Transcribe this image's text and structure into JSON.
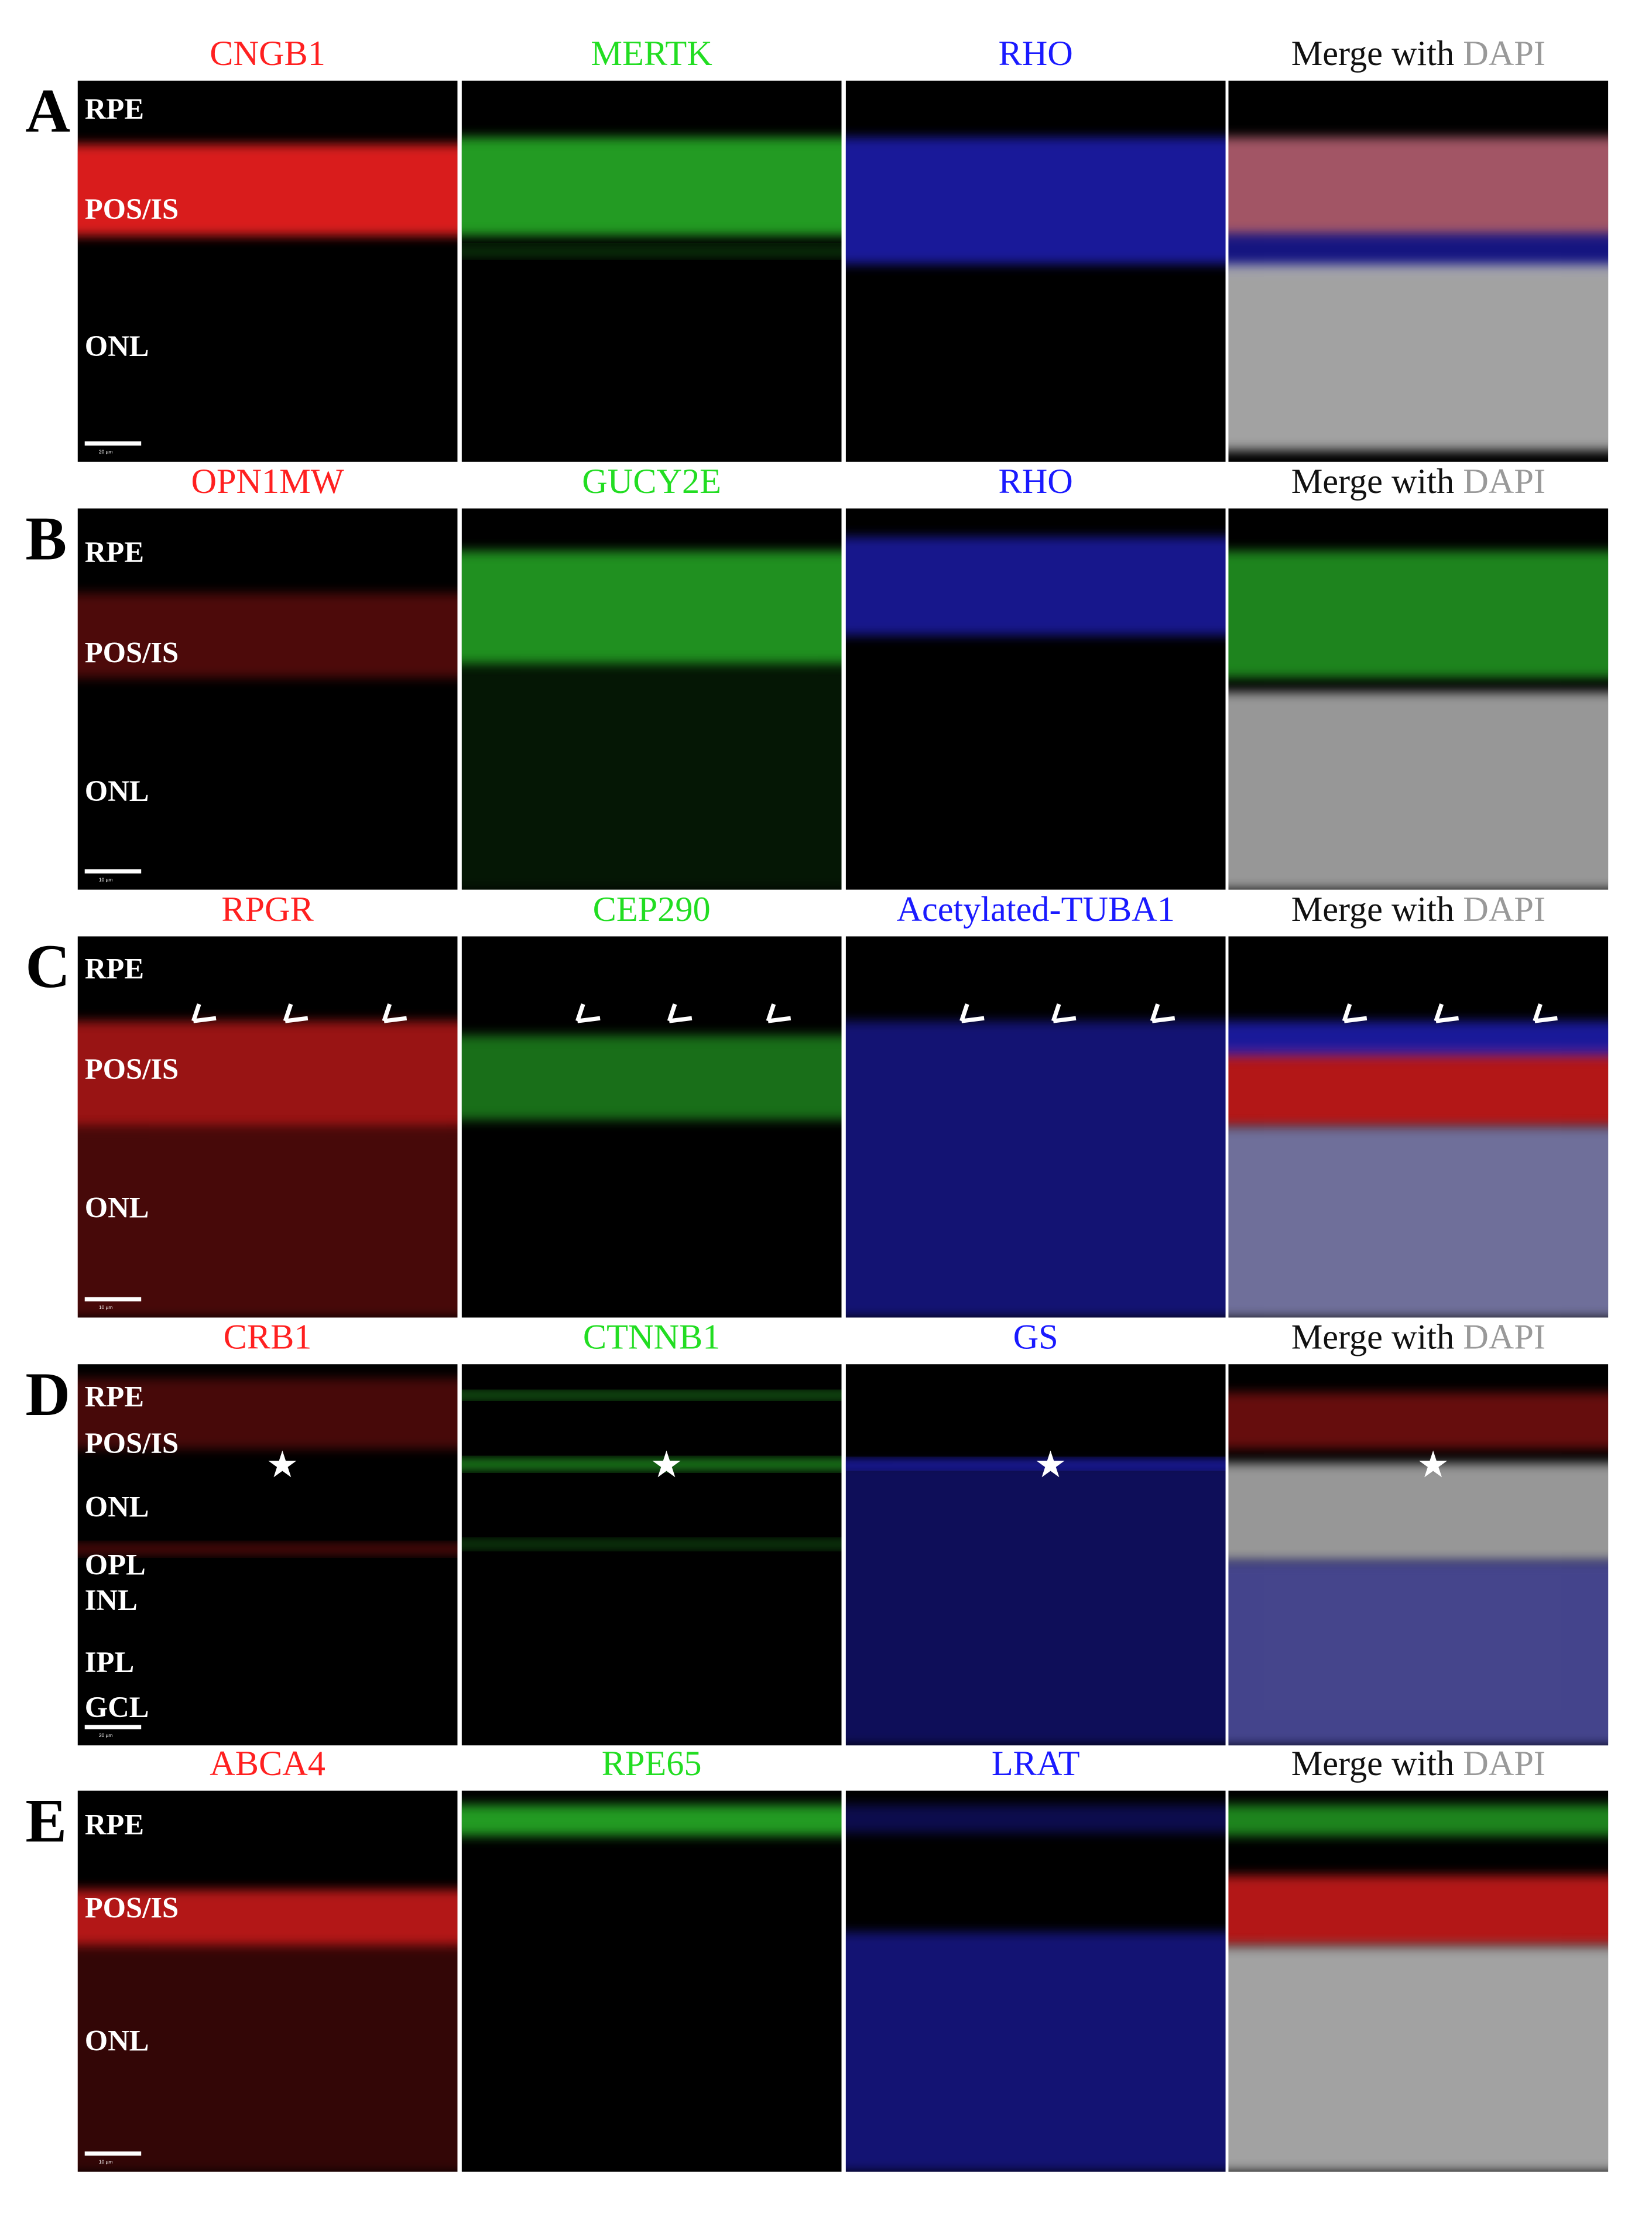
{
  "rows": [
    {
      "letter": "A",
      "headers": [
        "CNGB1",
        "MERTK",
        "RHO"
      ],
      "merge": "Merge with",
      "merge_stain": "DAPI",
      "layers": [
        "RPE",
        "POS/IS",
        "ONL"
      ],
      "scale_bar": "20 µm"
    },
    {
      "letter": "B",
      "headers": [
        "OPN1MW",
        "GUCY2E",
        "RHO"
      ],
      "merge": "Merge with",
      "merge_stain": "DAPI",
      "layers": [
        "RPE",
        "POS/IS",
        "ONL"
      ],
      "scale_bar": "10 µm"
    },
    {
      "letter": "C",
      "headers": [
        "RPGR",
        "CEP290",
        "Acetylated-TUBA1"
      ],
      "merge": "Merge with",
      "merge_stain": "DAPI",
      "layers": [
        "RPE",
        "POS/IS",
        "ONL"
      ],
      "scale_bar": "10 µm"
    },
    {
      "letter": "D",
      "headers": [
        "CRB1",
        "CTNNB1",
        "GS"
      ],
      "merge": "Merge with",
      "merge_stain": "DAPI",
      "layers": [
        "RPE",
        "POS/IS",
        "ONL",
        "OPL",
        "INL",
        "IPL",
        "GCL"
      ],
      "scale_bar": "20 µm"
    },
    {
      "letter": "E",
      "headers": [
        "ABCA4",
        "RPE65",
        "LRAT"
      ],
      "merge": "Merge with",
      "merge_stain": "DAPI",
      "layers": [
        "RPE",
        "POS/IS",
        "ONL"
      ],
      "scale_bar": "10 µm"
    }
  ]
}
